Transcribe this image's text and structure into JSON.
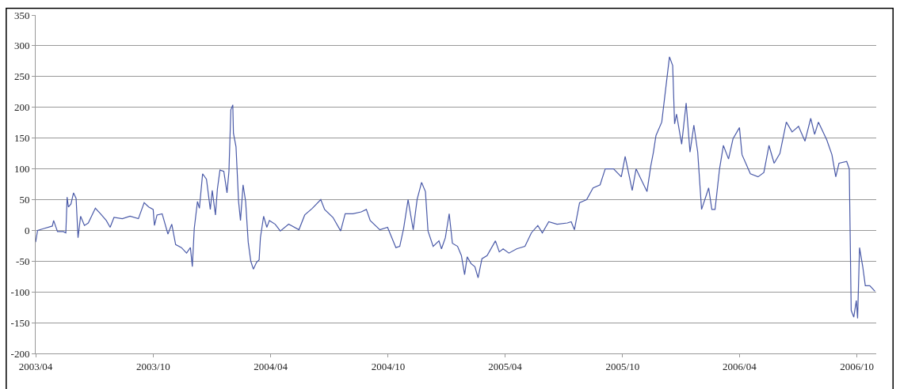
{
  "chart_data": {
    "type": "line",
    "xlim": [
      "2003-04-01",
      "2006-10-31"
    ],
    "ylim": [
      -200,
      350
    ],
    "yticks": [
      -200,
      -150,
      -100,
      -50,
      0,
      50,
      100,
      150,
      200,
      250,
      300,
      350
    ],
    "xticks": [
      {
        "value": "2003-04-01",
        "label": "2003/04"
      },
      {
        "value": "2003-10-01",
        "label": "2003/10"
      },
      {
        "value": "2004-04-01",
        "label": "2004/04"
      },
      {
        "value": "2004-10-01",
        "label": "2004/10"
      },
      {
        "value": "2005-04-01",
        "label": "2005/04"
      },
      {
        "value": "2005-10-01",
        "label": "2005/10"
      },
      {
        "value": "2006-04-01",
        "label": "2006/04"
      },
      {
        "value": "2006-10-01",
        "label": "2006/10"
      }
    ],
    "grid": "y",
    "marker": "none",
    "line_style": "solid",
    "series": [
      {
        "color": "#4a5aa8",
        "x": [
          "2003-04-01",
          "2003-04-04",
          "2003-04-14",
          "2003-04-27",
          "2003-04-29",
          "2003-05-05",
          "2003-05-14",
          "2003-05-18",
          "2003-05-20",
          "2003-05-22",
          "2003-05-26",
          "2003-05-30",
          "2003-06-03",
          "2003-06-06",
          "2003-06-10",
          "2003-06-16",
          "2003-06-22",
          "2003-07-03",
          "2003-07-11",
          "2003-07-20",
          "2003-07-26",
          "2003-08-01",
          "2003-08-14",
          "2003-08-26",
          "2003-09-08",
          "2003-09-17",
          "2003-09-24",
          "2003-10-01",
          "2003-10-03",
          "2003-10-07",
          "2003-10-15",
          "2003-10-24",
          "2003-10-30",
          "2003-11-05",
          "2003-11-14",
          "2003-11-22",
          "2003-11-28",
          "2003-12-01",
          "2003-12-04",
          "2003-12-09",
          "2003-12-12",
          "2003-12-17",
          "2003-12-23",
          "2003-12-29",
          "2004-01-01",
          "2004-01-06",
          "2004-01-09",
          "2004-01-13",
          "2004-01-19",
          "2004-01-24",
          "2004-01-27",
          "2004-01-30",
          "2004-02-02",
          "2004-02-03",
          "2004-02-07",
          "2004-02-11",
          "2004-02-14",
          "2004-02-18",
          "2004-02-22",
          "2004-02-26",
          "2004-03-01",
          "2004-03-05",
          "2004-03-10",
          "2004-03-14",
          "2004-03-16",
          "2004-03-21",
          "2004-03-26",
          "2004-03-30",
          "2004-04-08",
          "2004-04-16",
          "2004-04-29",
          "2004-05-15",
          "2004-05-24",
          "2004-06-05",
          "2004-06-18",
          "2004-06-24",
          "2004-07-07",
          "2004-07-19",
          "2004-07-26",
          "2004-08-07",
          "2004-08-20",
          "2004-08-28",
          "2004-09-03",
          "2004-09-18",
          "2004-09-30",
          "2004-10-13",
          "2004-10-19",
          "2004-10-25",
          "2004-11-01",
          "2004-11-05",
          "2004-11-09",
          "2004-11-15",
          "2004-11-22",
          "2004-11-28",
          "2004-12-02",
          "2004-12-10",
          "2004-12-19",
          "2004-12-23",
          "2004-12-29",
          "2005-01-04",
          "2005-01-09",
          "2005-01-17",
          "2005-01-23",
          "2005-01-28",
          "2005-02-01",
          "2005-02-07",
          "2005-02-13",
          "2005-02-18",
          "2005-02-24",
          "2005-03-04",
          "2005-03-17",
          "2005-03-23",
          "2005-03-29",
          "2005-04-07",
          "2005-04-19",
          "2005-05-02",
          "2005-05-12",
          "2005-05-22",
          "2005-05-29",
          "2005-06-08",
          "2005-06-21",
          "2005-07-07",
          "2005-07-13",
          "2005-07-18",
          "2005-07-26",
          "2005-08-06",
          "2005-08-16",
          "2005-08-27",
          "2005-09-04",
          "2005-09-17",
          "2005-09-29",
          "2005-10-05",
          "2005-10-16",
          "2005-10-22",
          "2005-10-28",
          "2005-11-08",
          "2005-11-14",
          "2005-11-18",
          "2005-11-22",
          "2005-12-01",
          "2005-12-07",
          "2005-12-13",
          "2005-12-18",
          "2005-12-21",
          "2005-12-24",
          "2006-01-01",
          "2006-01-08",
          "2006-01-14",
          "2006-01-20",
          "2006-01-26",
          "2006-02-01",
          "2006-02-08",
          "2006-02-12",
          "2006-02-17",
          "2006-02-22",
          "2006-03-01",
          "2006-03-07",
          "2006-03-15",
          "2006-03-22",
          "2006-04-01",
          "2006-04-05",
          "2006-04-18",
          "2006-04-30",
          "2006-05-09",
          "2006-05-17",
          "2006-05-25",
          "2006-06-03",
          "2006-06-13",
          "2006-06-22",
          "2006-07-02",
          "2006-07-12",
          "2006-07-21",
          "2006-07-27",
          "2006-08-02",
          "2006-08-15",
          "2006-08-23",
          "2006-08-29",
          "2006-09-03",
          "2006-09-15",
          "2006-09-19",
          "2006-09-22",
          "2006-09-26",
          "2006-09-30",
          "2006-10-02",
          "2006-10-05",
          "2006-10-10",
          "2006-10-14",
          "2006-10-21",
          "2006-10-29"
        ],
        "values": [
          -19,
          0,
          3,
          7,
          16,
          -2,
          -2,
          -4,
          54,
          38,
          43,
          61,
          52,
          -12,
          23,
          8,
          12,
          36,
          27,
          16,
          5,
          21,
          19,
          23,
          19,
          45,
          38,
          34,
          8,
          25,
          27,
          -6,
          10,
          -23,
          -28,
          -37,
          -28,
          -59,
          3,
          47,
          36,
          92,
          83,
          34,
          65,
          25,
          67,
          98,
          96,
          61,
          96,
          196,
          204,
          158,
          136,
          47,
          16,
          74,
          47,
          -19,
          -50,
          -63,
          -52,
          -48,
          -12,
          23,
          5,
          16,
          10,
          -1,
          10,
          1,
          25,
          36,
          50,
          34,
          21,
          -1,
          27,
          27,
          30,
          34,
          16,
          1,
          5,
          -28,
          -26,
          3,
          50,
          25,
          1,
          50,
          78,
          63,
          -1,
          -26,
          -17,
          -30,
          -12,
          27,
          -21,
          -26,
          -41,
          -72,
          -43,
          -54,
          -59,
          -77,
          -46,
          -41,
          -17,
          -35,
          -30,
          -37,
          -30,
          -26,
          -4,
          8,
          -4,
          14,
          10,
          12,
          14,
          1,
          45,
          50,
          69,
          74,
          100,
          100,
          87,
          120,
          65,
          100,
          87,
          63,
          105,
          127,
          154,
          176,
          229,
          282,
          268,
          173,
          189,
          140,
          207,
          127,
          171,
          127,
          34,
          56,
          69,
          34,
          34,
          100,
          138,
          116,
          149,
          167,
          123,
          92,
          87,
          94,
          138,
          109,
          125,
          176,
          160,
          169,
          145,
          182,
          156,
          176,
          147,
          123,
          87,
          109,
          112,
          100,
          -130,
          -141,
          -114,
          -143,
          -28,
          -59,
          -90,
          -90,
          -99
        ]
      }
    ]
  }
}
